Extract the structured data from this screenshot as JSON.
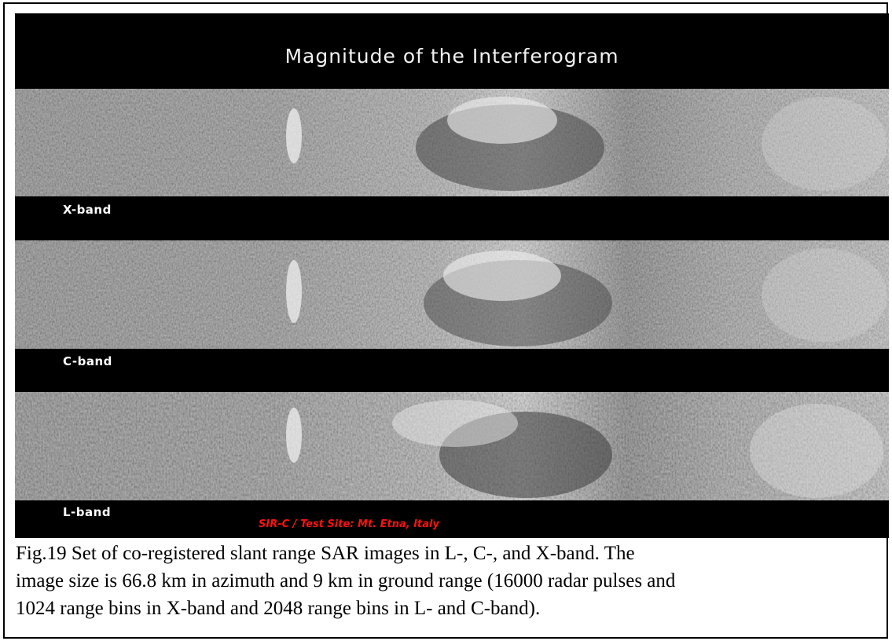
{
  "figure": {
    "title": "Magnitude of the Interferogram",
    "bands": [
      {
        "label": "X-band"
      },
      {
        "label": "C-band"
      },
      {
        "label": "L-band"
      }
    ],
    "credit": "SIR-C / Test Site: Mt. Etna, Italy"
  },
  "caption": {
    "lines": [
      "Fig.19 Set of co-registered slant range SAR images in L-, C-, and X-band. The",
      "image size is 66.8 km in azimuth and 9 km in ground range (16000 radar pulses and",
      "1024 range bins in X-band and 2048 range bins in L- and C-band)."
    ]
  },
  "colors": {
    "background": "#000000",
    "title_text": "#f2f2f2",
    "credit_text": "#ff1010"
  }
}
